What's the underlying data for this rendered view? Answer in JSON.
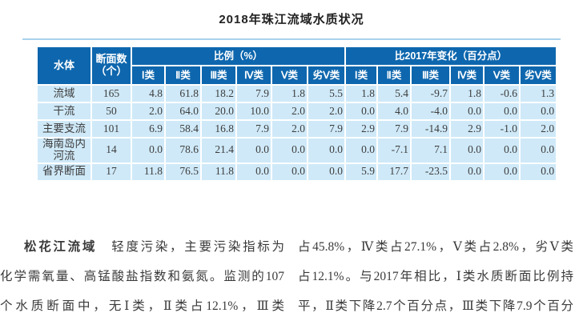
{
  "title": "2018年珠江流域水质状况",
  "colors": {
    "header_bg": "#0e67ae",
    "row_bg": "#cfe9f8",
    "rule": "#a9d2eb"
  },
  "table": {
    "col_headers": {
      "water_body": "水体",
      "section_count_line1": "断面数",
      "section_count_line2": "（个）",
      "group_ratio": "比例（%）",
      "group_change": "比2017年变化（百分点）"
    },
    "class_labels": [
      "Ⅰ类",
      "Ⅱ类",
      "Ⅲ类",
      "Ⅳ类",
      "Ⅴ类",
      "劣Ⅴ类"
    ],
    "rows": [
      {
        "name": "流域",
        "count": "165",
        "ratios": [
          "4.8",
          "61.8",
          "18.2",
          "7.9",
          "1.8",
          "5.5"
        ],
        "changes": [
          "1.8",
          "5.4",
          "-9.7",
          "1.8",
          "-0.6",
          "1.3"
        ]
      },
      {
        "name": "干流",
        "count": "50",
        "ratios": [
          "2.0",
          "64.0",
          "20.0",
          "10.0",
          "2.0",
          "2.0"
        ],
        "changes": [
          "0.0",
          "4.0",
          "-4.0",
          "0.0",
          "0.0",
          "0.0"
        ]
      },
      {
        "name": "主要支流",
        "count": "101",
        "ratios": [
          "6.9",
          "58.4",
          "16.8",
          "7.9",
          "2.0",
          "7.9"
        ],
        "changes": [
          "2.9",
          "7.9",
          "-14.9",
          "2.9",
          "-1.0",
          "2.0"
        ]
      },
      {
        "name": "海南岛内河流",
        "count": "14",
        "ratios": [
          "0.0",
          "78.6",
          "21.4",
          "0.0",
          "0.0",
          "0.0"
        ],
        "changes": [
          "0.0",
          "-7.1",
          "7.1",
          "0.0",
          "0.0",
          "0.0"
        ]
      },
      {
        "name": "省界断面",
        "count": "17",
        "ratios": [
          "11.8",
          "76.5",
          "11.8",
          "0.0",
          "0.0",
          "0.0"
        ],
        "changes": [
          "5.9",
          "17.7",
          "-23.5",
          "0.0",
          "0.0",
          "0.0"
        ]
      }
    ]
  },
  "body": {
    "left": {
      "lead": "松花江流域",
      "line1_rest": "　轻度污染，主要污染指标为",
      "line2": "化学需氧量、高锰酸盐指数和氨氮。监测的107",
      "line3": "个水质断面中，无Ⅰ类，Ⅱ类占12.1%，Ⅲ类"
    },
    "right": {
      "line1": "占45.8%，Ⅳ类占27.1%，Ⅴ类占2.8%，劣Ⅴ类",
      "line2": "占12.1%。与2017年相比，Ⅰ类水质断面比例持",
      "line3": "平，Ⅱ类下降2.7个百分点，Ⅲ类下降7.9个百分"
    }
  }
}
